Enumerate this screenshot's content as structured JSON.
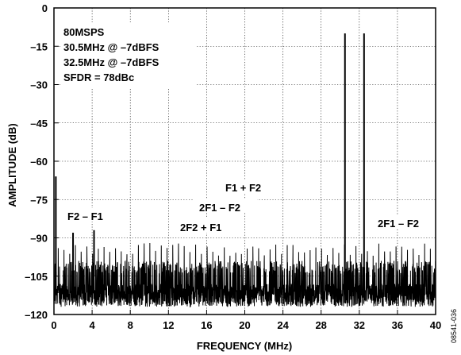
{
  "chart_data": {
    "type": "line",
    "title": "",
    "xlabel": "FREQUENCY (MHz)",
    "ylabel": "AMPLITUDE (dB)",
    "xlim": [
      0,
      40
    ],
    "ylim": [
      -120,
      0
    ],
    "x_ticks": [
      0,
      4,
      8,
      12,
      16,
      20,
      24,
      28,
      32,
      36,
      40
    ],
    "y_ticks": [
      0,
      -15,
      -30,
      -45,
      -60,
      -75,
      -90,
      -105,
      -120
    ],
    "x_tick_labels": [
      "0",
      "4",
      "8",
      "12",
      "16",
      "20",
      "24",
      "28",
      "32",
      "36",
      "40"
    ],
    "y_tick_labels": [
      "0",
      "–15",
      "–30",
      "–45",
      "–60",
      "–75",
      "–90",
      "–105",
      "–120"
    ],
    "grid": true,
    "info_lines": [
      "80MSPS",
      "30.5MHz @ –7dBFS",
      "32.5MHz @ –7dBFS",
      "SFDR = 78dBc"
    ],
    "annotations": [
      {
        "text": "F2 – F1",
        "x": 2.0
      },
      {
        "text": "2F2 + F1",
        "x": 93.5
      },
      {
        "text": "2F1 – F2",
        "x": 28.5
      },
      {
        "text": "F1 + F2",
        "x": 63.0
      },
      {
        "text": "2F1 – F2",
        "x": 28.5
      }
    ],
    "series": [
      {
        "peaks": [
          {
            "x": 30.5,
            "y": -10
          },
          {
            "x": 32.5,
            "y": -10
          },
          {
            "x": 0.2,
            "y": -66
          },
          {
            "x": 2.0,
            "y": -88
          },
          {
            "x": 4.2,
            "y": -87
          }
        ],
        "spur_floor_db": -91,
        "noise_floor_db": -105
      }
    ],
    "figure_id": "08541-036"
  }
}
